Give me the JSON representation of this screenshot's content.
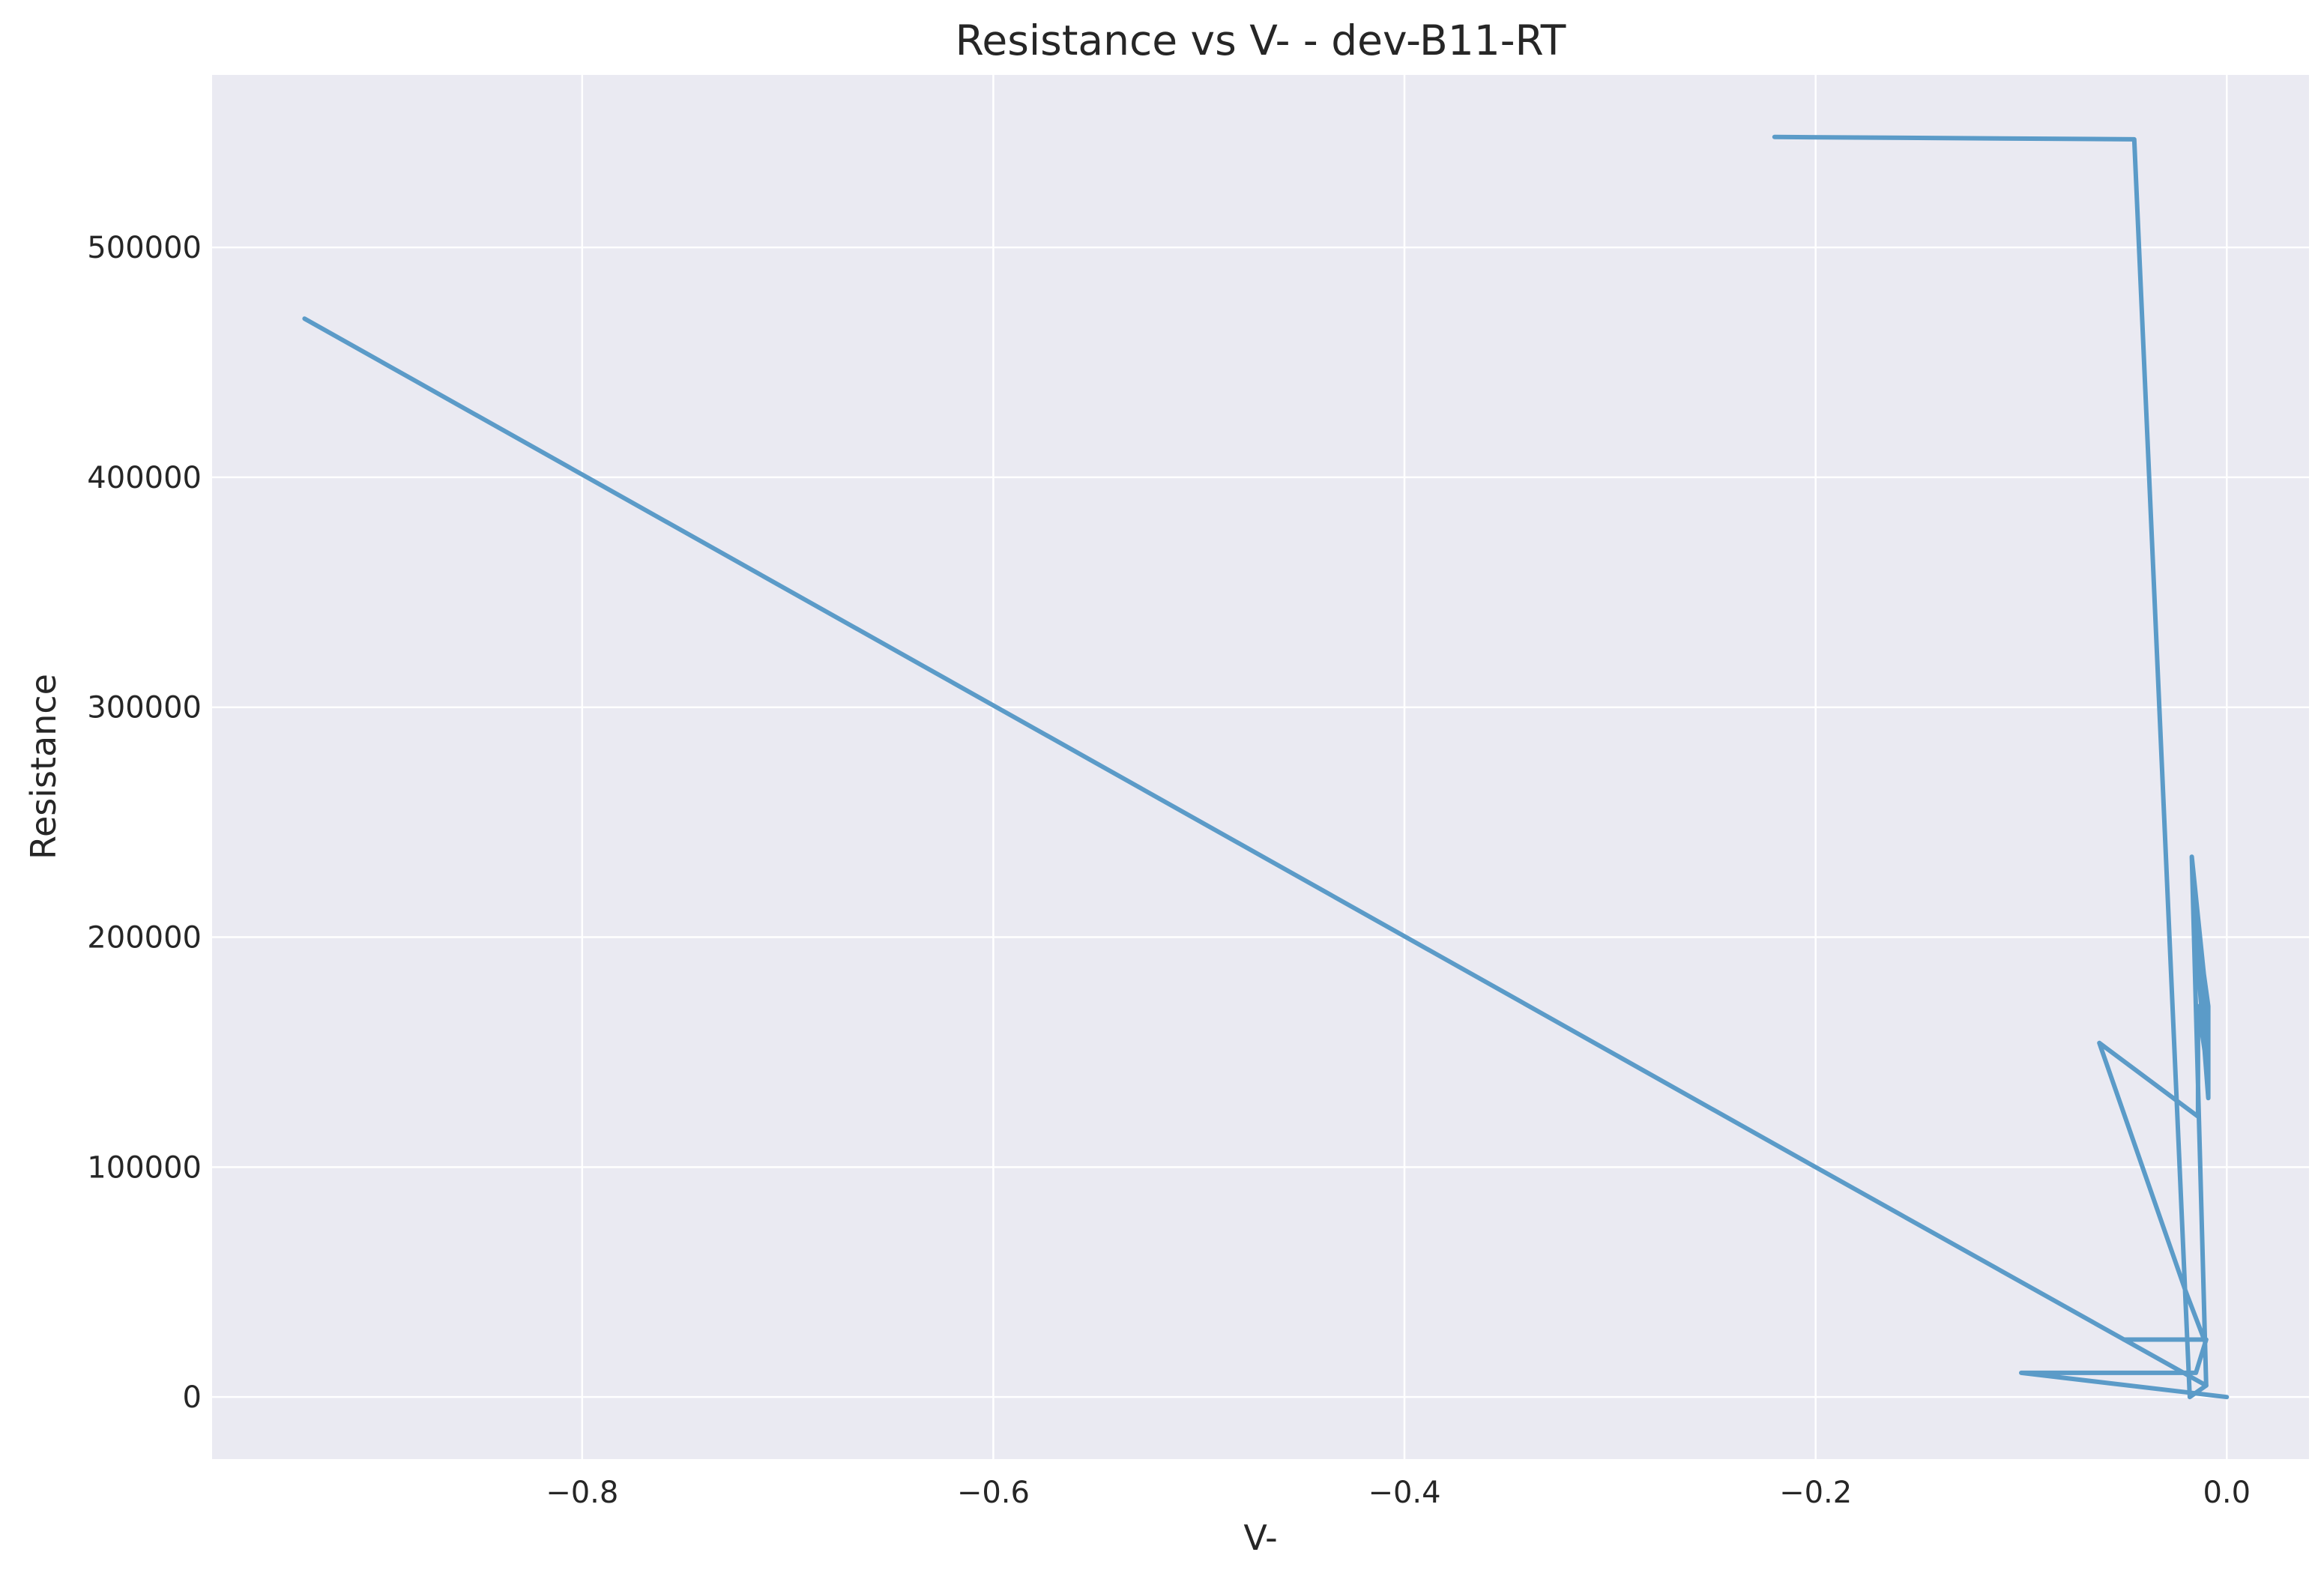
{
  "chart_data": {
    "type": "line",
    "title": "Resistance vs V- - dev-B11-RT",
    "xlabel": "V-",
    "ylabel": "Resistance",
    "xlim": [
      -0.98,
      0.04
    ],
    "ylim": [
      -27000,
      575000
    ],
    "xticks": [
      -0.8,
      -0.6,
      -0.4,
      -0.2,
      0.0
    ],
    "xtick_labels": [
      "−0.8",
      "−0.6",
      "−0.4",
      "−0.2",
      "0.0"
    ],
    "yticks": [
      0,
      100000,
      200000,
      300000,
      400000,
      500000
    ],
    "ytick_labels": [
      "0",
      "100000",
      "200000",
      "300000",
      "400000",
      "500000"
    ],
    "grid": true,
    "background": "#eaeaf2",
    "line_color": "#5b9bc8",
    "series": [
      {
        "x": [
          0.0,
          -0.1,
          -0.015,
          -0.01,
          -0.05,
          -0.011,
          -0.02,
          -0.062,
          -0.014,
          -0.014,
          -0.009,
          -0.009,
          -0.015,
          -0.009,
          -0.009,
          -0.016,
          -0.009,
          -0.009,
          -0.017,
          -0.01,
          -0.018,
          -0.045,
          -0.22
        ],
        "y": [
          0,
          10500,
          10500,
          25000,
          25000,
          25000,
          46000,
          154000,
          122000,
          170000,
          140000,
          165000,
          200000,
          130000,
          170000,
          215000,
          155000,
          165000,
          235000,
          5000,
          0,
          547000,
          548000
        ]
      },
      {
        "x": [
          -0.935,
          -0.2,
          -0.01
        ],
        "y": [
          469000,
          100000,
          5000
        ]
      }
    ]
  }
}
